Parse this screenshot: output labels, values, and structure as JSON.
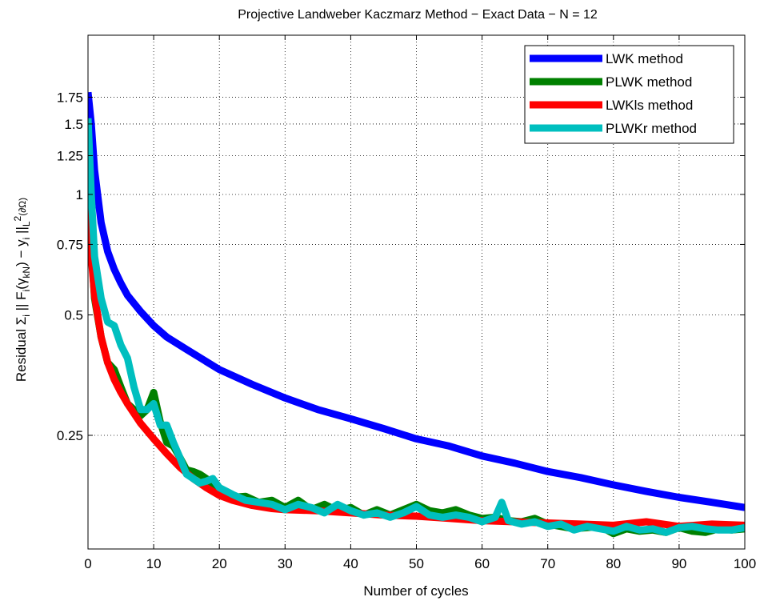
{
  "chart_data": {
    "type": "line",
    "title": "Projective Landweber Kaczmarz Method  −  Exact Data  −  N = 12",
    "xlabel": "Number of cycles",
    "ylabel_parts": {
      "prefix": "Residual  Σ",
      "sub_i": "i",
      "mid1": "  || F",
      "mid2": "(γ",
      "sub_kN": "kN",
      "mid3": ") − y",
      "end": " ||",
      "sub_L": "L",
      "sup_2": "2",
      "sub_dOmega": "(∂Ω)"
    },
    "xlim": [
      0,
      100
    ],
    "ylim": [
      0.13,
      2.5
    ],
    "yscale": "log",
    "x_ticks": [
      0,
      10,
      20,
      30,
      40,
      50,
      60,
      70,
      80,
      90,
      100
    ],
    "x_tick_labels": [
      "0",
      "10",
      "20",
      "30",
      "40",
      "50",
      "60",
      "70",
      "80",
      "90",
      "100"
    ],
    "y_ticks": [
      0.25,
      0.5,
      0.75,
      1,
      1.25,
      1.5,
      1.75
    ],
    "y_tick_labels": [
      "0.25",
      "0.5",
      "0.75",
      "1",
      "1.25",
      "1.5",
      "1.75"
    ],
    "grid": true,
    "legend_position": "top-right",
    "series": [
      {
        "name": "LWK method",
        "color": "#0000ff",
        "x": [
          0,
          0.5,
          1,
          2,
          3,
          4,
          5,
          6,
          8,
          10,
          12,
          15,
          20,
          25,
          30,
          35,
          40,
          45,
          50,
          55,
          60,
          65,
          70,
          75,
          80,
          85,
          90,
          95,
          100
        ],
        "y": [
          1.8,
          1.5,
          1.15,
          0.85,
          0.72,
          0.65,
          0.6,
          0.56,
          0.51,
          0.47,
          0.44,
          0.41,
          0.365,
          0.335,
          0.31,
          0.29,
          0.275,
          0.26,
          0.245,
          0.235,
          0.222,
          0.213,
          0.203,
          0.196,
          0.188,
          0.181,
          0.175,
          0.17,
          0.165
        ]
      },
      {
        "name": "PLWK method",
        "color": "#008000",
        "x": [
          0,
          1,
          2,
          3,
          4,
          5,
          6,
          7,
          8,
          9,
          10,
          11,
          12,
          13,
          14,
          15,
          16,
          17,
          18,
          20,
          22,
          24,
          26,
          28,
          30,
          32,
          34,
          36,
          38,
          40,
          42,
          44,
          46,
          48,
          50,
          52,
          54,
          56,
          58,
          60,
          62,
          64,
          66,
          68,
          70,
          72,
          74,
          76,
          78,
          80,
          82,
          84,
          86,
          88,
          90,
          92,
          94,
          96,
          98,
          100
        ],
        "y": [
          1.0,
          0.55,
          0.44,
          0.38,
          0.365,
          0.33,
          0.3,
          0.29,
          0.28,
          0.29,
          0.32,
          0.27,
          0.24,
          0.235,
          0.22,
          0.205,
          0.203,
          0.2,
          0.195,
          0.18,
          0.175,
          0.176,
          0.17,
          0.172,
          0.165,
          0.172,
          0.163,
          0.168,
          0.162,
          0.165,
          0.158,
          0.163,
          0.158,
          0.163,
          0.168,
          0.162,
          0.16,
          0.163,
          0.158,
          0.155,
          0.156,
          0.153,
          0.152,
          0.155,
          0.15,
          0.148,
          0.146,
          0.147,
          0.148,
          0.142,
          0.146,
          0.144,
          0.145,
          0.143,
          0.147,
          0.144,
          0.143,
          0.146,
          0.145,
          0.146
        ]
      },
      {
        "name": "LWKls method",
        "color": "#ff0000",
        "x": [
          0,
          0.5,
          1,
          2,
          3,
          4,
          5,
          6,
          8,
          10,
          12,
          14,
          16,
          18,
          20,
          22,
          25,
          28,
          30,
          35,
          40,
          45,
          50,
          55,
          60,
          65,
          70,
          75,
          80,
          85,
          90,
          95,
          100
        ],
        "y": [
          0.95,
          0.7,
          0.56,
          0.44,
          0.38,
          0.345,
          0.32,
          0.3,
          0.268,
          0.245,
          0.225,
          0.208,
          0.195,
          0.185,
          0.177,
          0.172,
          0.167,
          0.164,
          0.163,
          0.162,
          0.16,
          0.158,
          0.157,
          0.155,
          0.153,
          0.152,
          0.151,
          0.15,
          0.149,
          0.152,
          0.148,
          0.15,
          0.149
        ]
      },
      {
        "name": "PLWKr method",
        "color": "#00bfbf",
        "x": [
          0,
          0.5,
          1,
          2,
          3,
          4,
          5,
          6,
          7,
          8,
          9,
          10,
          11,
          12,
          13,
          14,
          15,
          16,
          17,
          18,
          19,
          20,
          22,
          24,
          26,
          28,
          30,
          32,
          34,
          36,
          38,
          40,
          42,
          44,
          46,
          48,
          50,
          52,
          54,
          56,
          58,
          60,
          62,
          63,
          64,
          66,
          68,
          70,
          72,
          74,
          76,
          78,
          80,
          82,
          84,
          86,
          88,
          90,
          92,
          94,
          96,
          98,
          100
        ],
        "y": [
          1.55,
          1.0,
          0.7,
          0.55,
          0.48,
          0.47,
          0.42,
          0.39,
          0.33,
          0.29,
          0.29,
          0.3,
          0.265,
          0.265,
          0.24,
          0.22,
          0.2,
          0.195,
          0.19,
          0.192,
          0.195,
          0.185,
          0.178,
          0.172,
          0.17,
          0.168,
          0.163,
          0.168,
          0.165,
          0.16,
          0.168,
          0.162,
          0.158,
          0.16,
          0.156,
          0.16,
          0.166,
          0.158,
          0.156,
          0.158,
          0.156,
          0.152,
          0.156,
          0.17,
          0.153,
          0.15,
          0.152,
          0.148,
          0.15,
          0.145,
          0.148,
          0.146,
          0.144,
          0.148,
          0.145,
          0.146,
          0.143,
          0.147,
          0.148,
          0.146,
          0.145,
          0.145,
          0.147
        ]
      }
    ]
  }
}
